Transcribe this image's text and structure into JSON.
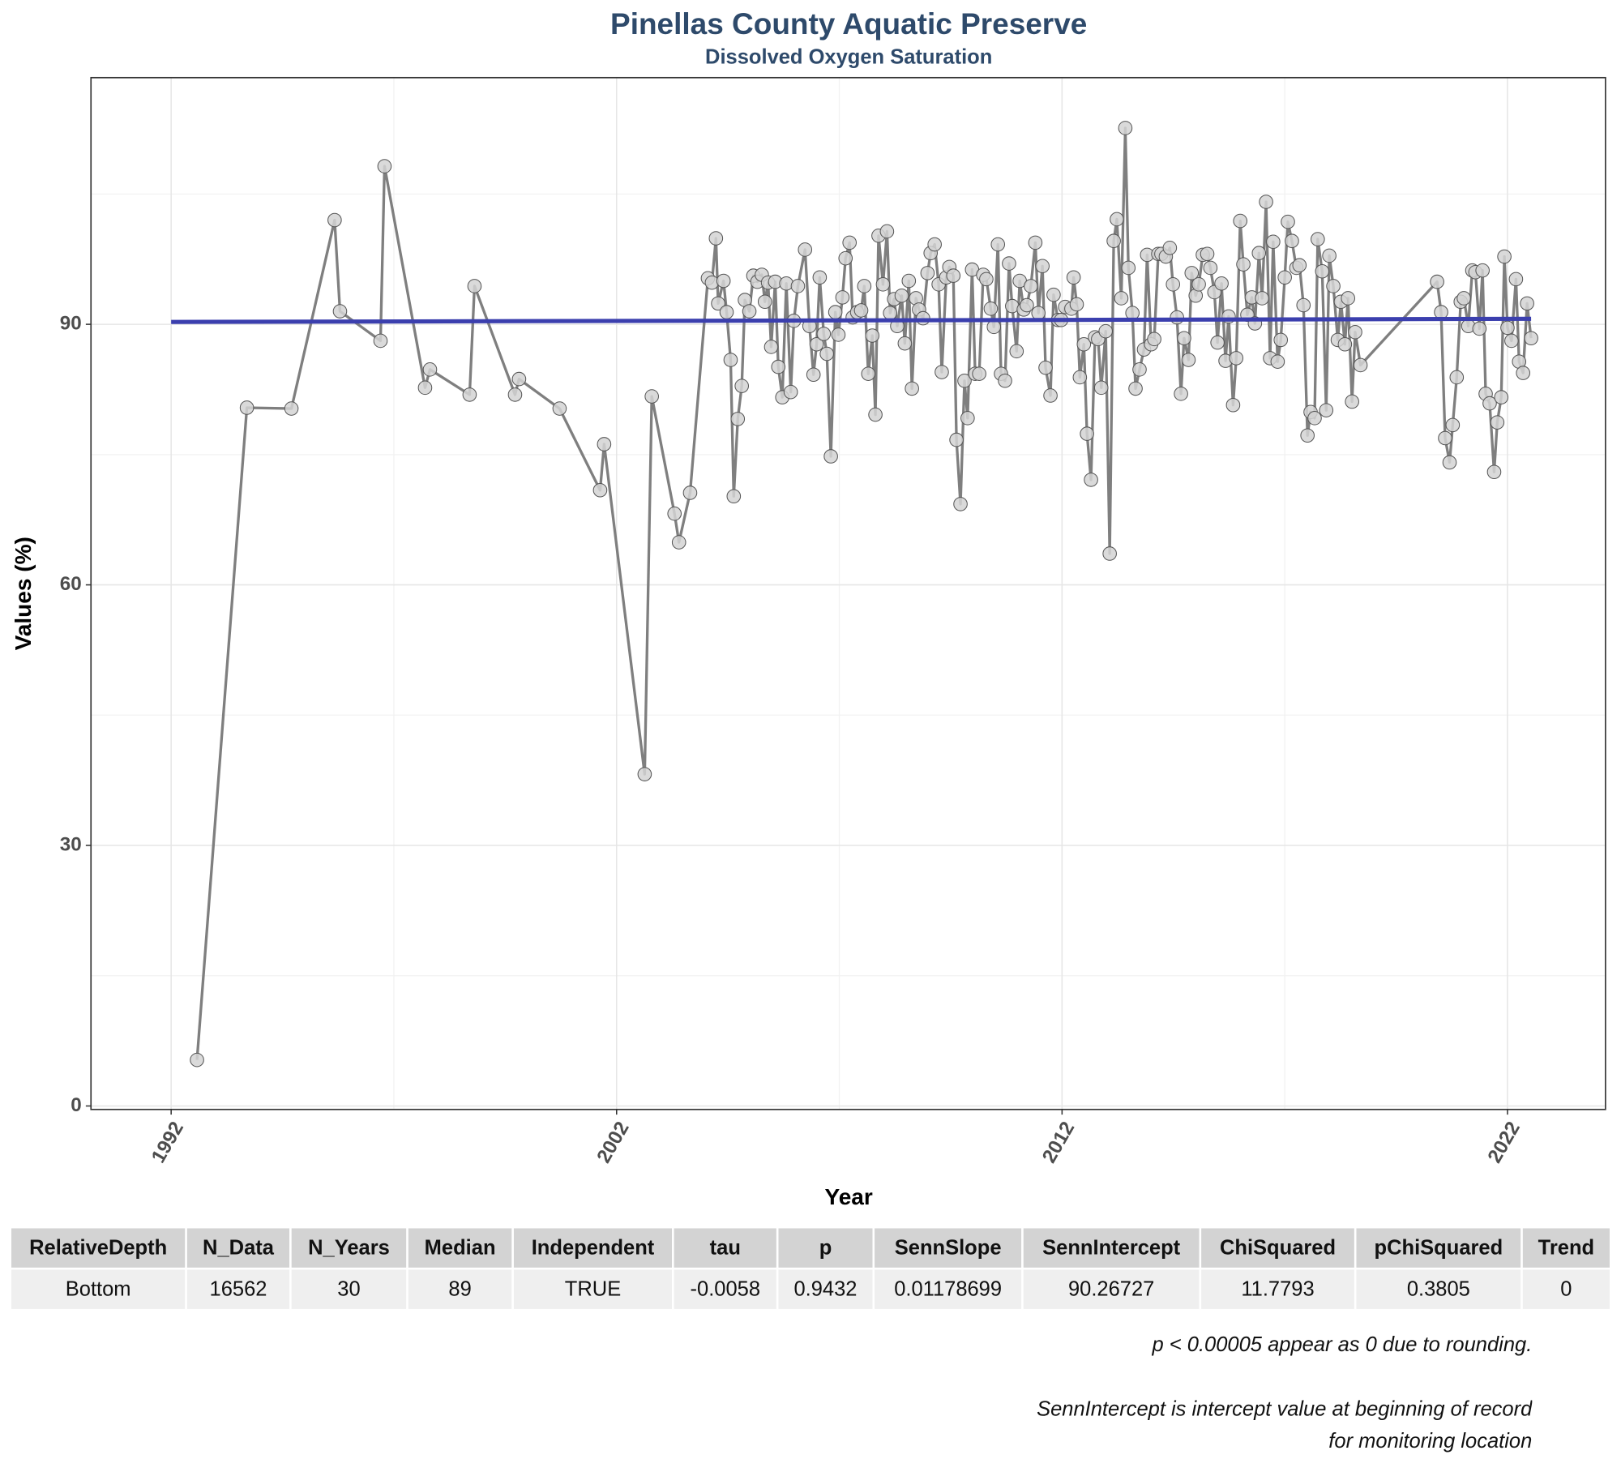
{
  "chart_data": {
    "type": "line",
    "title": "Pinellas County Aquatic Preserve",
    "subtitle": "Dissolved Oxygen Saturation",
    "x_label": "Year",
    "y_label": "Values (%)",
    "xlim": [
      1990.2,
      2024.2
    ],
    "ylim": [
      -0.4,
      118.4
    ],
    "xticks": [
      1992,
      2002,
      2012,
      2022
    ],
    "yticks": [
      0,
      30,
      60,
      90
    ],
    "grid": true,
    "color": "#7f7f7f",
    "marker_color": "#d3d3d3",
    "x": [
      1992.58,
      1993.7,
      1994.7,
      1995.67,
      1995.79,
      1996.7,
      1996.79,
      1997.7,
      1997.81,
      1998.7,
      1998.81,
      1999.72,
      1999.81,
      2000.72,
      2001.63,
      2001.72,
      2002.63,
      2002.79,
      2003.3,
      2003.4,
      2003.65,
      2004.05,
      2004.14,
      2004.23,
      2004.28,
      2004.4,
      2004.47,
      2004.56,
      2004.63,
      2004.72,
      2004.81,
      2004.88,
      2004.98,
      2005.07,
      2005.16,
      2005.26,
      2005.33,
      2005.4,
      2005.47,
      2005.56,
      2005.63,
      2005.72,
      2005.81,
      2005.91,
      2005.98,
      2006.07,
      2006.23,
      2006.33,
      2006.42,
      2006.49,
      2006.56,
      2006.65,
      2006.72,
      2006.81,
      2006.91,
      2006.98,
      2007.07,
      2007.14,
      2007.23,
      2007.3,
      2007.4,
      2007.49,
      2007.56,
      2007.65,
      2007.74,
      2007.81,
      2007.88,
      2007.98,
      2008.07,
      2008.14,
      2008.23,
      2008.3,
      2008.4,
      2008.47,
      2008.56,
      2008.63,
      2008.72,
      2008.79,
      2008.88,
      2008.98,
      2009.05,
      2009.14,
      2009.23,
      2009.3,
      2009.4,
      2009.47,
      2009.56,
      2009.63,
      2009.72,
      2009.81,
      2009.88,
      2009.98,
      2010.05,
      2010.14,
      2010.23,
      2010.3,
      2010.4,
      2010.47,
      2010.56,
      2010.63,
      2010.72,
      2010.81,
      2010.88,
      2010.98,
      2011.05,
      2011.14,
      2011.21,
      2011.3,
      2011.4,
      2011.47,
      2011.56,
      2011.63,
      2011.74,
      2011.81,
      2011.91,
      2011.98,
      2012.07,
      2012.21,
      2012.26,
      2012.33,
      2012.4,
      2012.49,
      2012.56,
      2012.65,
      2012.74,
      2012.81,
      2012.88,
      2012.98,
      2013.07,
      2013.16,
      2013.23,
      2013.33,
      2013.42,
      2013.49,
      2013.58,
      2013.65,
      2013.74,
      2013.84,
      2013.91,
      2014.0,
      2014.07,
      2014.16,
      2014.23,
      2014.33,
      2014.42,
      2014.49,
      2014.58,
      2014.67,
      2014.74,
      2014.84,
      2014.91,
      2015.0,
      2015.07,
      2015.16,
      2015.26,
      2015.33,
      2015.42,
      2015.49,
      2015.58,
      2015.67,
      2015.74,
      2015.84,
      2015.91,
      2016.0,
      2016.07,
      2016.16,
      2016.26,
      2016.33,
      2016.42,
      2016.49,
      2016.58,
      2016.67,
      2016.74,
      2016.84,
      2016.91,
      2017.0,
      2017.07,
      2017.16,
      2017.26,
      2017.33,
      2017.42,
      2017.51,
      2017.58,
      2017.67,
      2017.74,
      2017.84,
      2017.93,
      2018.0,
      2018.09,
      2018.19,
      2018.26,
      2018.35,
      2018.42,
      2018.51,
      2018.58,
      2018.7,
      2020.42,
      2020.51,
      2020.6,
      2020.7,
      2020.77,
      2020.86,
      2020.95,
      2021.02,
      2021.12,
      2021.21,
      2021.28,
      2021.37,
      2021.44,
      2021.51,
      2021.6,
      2021.7,
      2021.77,
      2021.86,
      2021.93,
      2022.0,
      2022.09,
      2022.19,
      2022.26,
      2022.35,
      2022.44,
      2022.53
    ],
    "values": [
      5.3,
      80.4,
      80.3,
      102.0,
      91.5,
      88.1,
      108.2,
      82.7,
      84.8,
      81.9,
      94.4,
      81.9,
      83.7,
      80.3,
      70.9,
      76.2,
      38.2,
      81.7,
      68.2,
      64.9,
      70.6,
      95.3,
      94.8,
      99.9,
      92.4,
      95.0,
      91.4,
      85.9,
      70.2,
      79.1,
      82.9,
      92.8,
      91.5,
      95.6,
      94.9,
      95.7,
      92.6,
      94.8,
      87.4,
      94.9,
      85.1,
      81.6,
      94.7,
      82.2,
      90.4,
      94.4,
      98.6,
      89.8,
      84.2,
      87.7,
      95.4,
      88.9,
      86.6,
      74.8,
      91.4,
      88.8,
      93.1,
      97.6,
      99.4,
      90.8,
      91.4,
      91.6,
      94.4,
      84.3,
      88.7,
      79.6,
      100.2,
      94.6,
      100.7,
      91.3,
      92.9,
      89.8,
      93.3,
      87.8,
      95.0,
      82.6,
      93.0,
      91.7,
      90.7,
      95.9,
      98.2,
      99.2,
      94.6,
      84.5,
      95.4,
      96.6,
      95.6,
      76.7,
      69.3,
      83.5,
      79.2,
      96.3,
      84.3,
      84.3,
      95.7,
      95.2,
      91.8,
      89.7,
      99.2,
      84.3,
      83.5,
      97.0,
      92.1,
      86.9,
      95.0,
      91.7,
      92.2,
      94.4,
      99.4,
      91.3,
      96.7,
      85.0,
      81.8,
      93.4,
      90.5,
      90.5,
      92.0,
      91.8,
      95.4,
      92.3,
      83.9,
      87.7,
      77.4,
      72.1,
      88.5,
      88.3,
      82.7,
      89.2,
      63.6,
      99.6,
      102.1,
      93.0,
      112.6,
      96.5,
      91.3,
      82.6,
      84.8,
      87.1,
      98.0,
      87.7,
      88.3,
      98.1,
      98.1,
      97.8,
      98.8,
      94.6,
      90.8,
      82.0,
      88.4,
      85.9,
      95.9,
      93.3,
      94.6,
      98.0,
      98.1,
      96.5,
      93.7,
      87.9,
      94.7,
      85.8,
      90.9,
      80.7,
      86.1,
      101.9,
      96.9,
      91.1,
      93.1,
      90.1,
      98.2,
      93.0,
      104.1,
      86.1,
      99.5,
      85.7,
      88.2,
      95.4,
      101.8,
      99.6,
      96.5,
      96.8,
      92.2,
      77.2,
      79.9,
      79.2,
      99.8,
      96.1,
      80.1,
      97.9,
      94.4,
      88.2,
      92.6,
      87.7,
      93.0,
      81.1,
      89.1,
      85.3,
      94.9,
      91.4,
      76.9,
      74.1,
      78.4,
      83.9,
      92.6,
      93.0,
      89.8,
      96.2,
      96.0,
      89.5,
      96.2,
      82.0,
      80.9,
      73.0,
      78.7,
      81.6,
      97.8,
      89.6,
      88.1,
      95.2,
      85.7,
      84.4,
      92.4,
      88.4
    ],
    "trend": {
      "x": [
        1992.0,
        2022.53
      ],
      "values": [
        90.27,
        90.63
      ],
      "color": "#3b3fae"
    }
  },
  "table": {
    "columns": [
      "RelativeDepth",
      "N_Data",
      "N_Years",
      "Median",
      "Independent",
      "tau",
      "p",
      "SennSlope",
      "SennIntercept",
      "ChiSquared",
      "pChiSquared",
      "Trend"
    ],
    "rows": [
      [
        "Bottom",
        "16562",
        "30",
        "89",
        "TRUE",
        "-0.0058",
        "0.9432",
        "0.01178699",
        "90.26727",
        "11.7793",
        "0.3805",
        "0"
      ]
    ]
  },
  "notes": [
    "p < 0.00005 appear as 0 due to rounding.",
    "SennIntercept is intercept value at beginning of record for monitoring location"
  ]
}
